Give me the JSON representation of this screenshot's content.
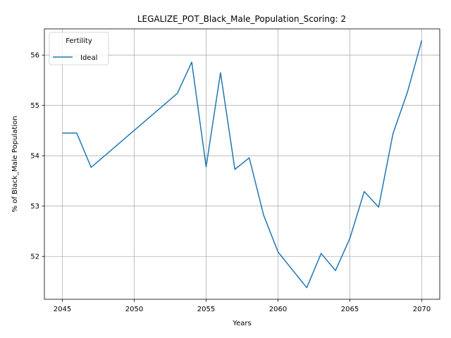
{
  "chart_data": {
    "type": "line",
    "title": "LEGALIZE_POT_Black_Male_Population_Scoring: 2",
    "xlabel": "Years",
    "ylabel": "% of Black_Male Population",
    "xlim": [
      2043.75,
      2071.25
    ],
    "ylim": [
      51.15,
      56.52
    ],
    "x_ticks": [
      2045,
      2050,
      2055,
      2060,
      2065,
      2070
    ],
    "y_ticks": [
      52,
      53,
      54,
      55,
      56
    ],
    "grid": true,
    "legend": {
      "title": "Fertility",
      "placement": "upper-left"
    },
    "series": [
      {
        "name": "Ideal",
        "color": "#1f77b4",
        "x": [
          2045,
          2046,
          2047,
          2053,
          2054,
          2055,
          2056,
          2057,
          2058,
          2059,
          2060,
          2062,
          2063,
          2064,
          2065,
          2066,
          2067,
          2068,
          2069,
          2070
        ],
        "y": [
          54.45,
          54.45,
          53.77,
          55.24,
          55.86,
          53.78,
          55.65,
          53.73,
          53.96,
          52.82,
          52.09,
          51.38,
          52.06,
          51.72,
          52.36,
          53.29,
          52.98,
          54.44,
          55.26,
          56.29
        ]
      }
    ]
  }
}
